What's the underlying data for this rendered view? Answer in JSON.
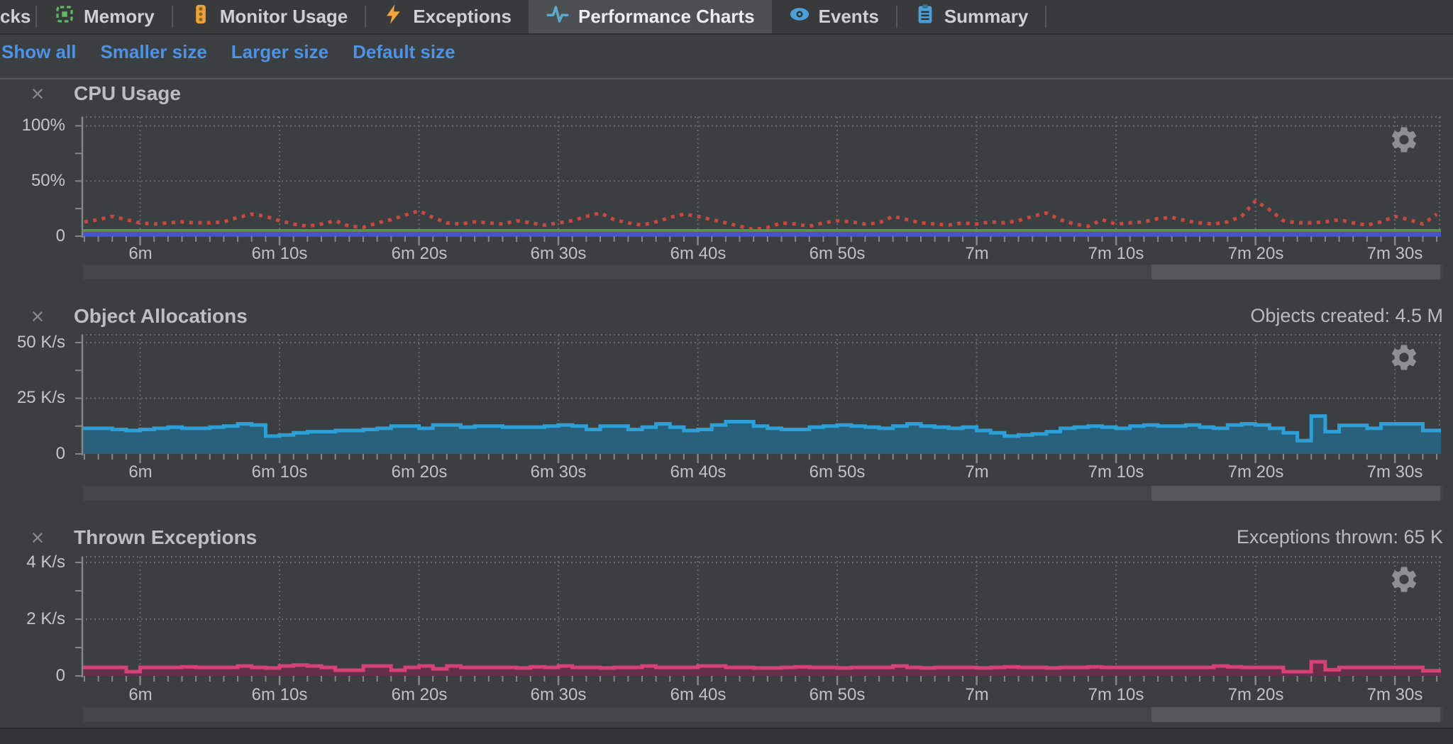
{
  "tabs": {
    "items": [
      {
        "label": "cks",
        "icon": "partial-tab",
        "selected": false
      },
      {
        "label": "Memory",
        "icon": "memory-chip-icon",
        "selected": false
      },
      {
        "label": "Monitor Usage",
        "icon": "traffic-light-icon",
        "selected": false
      },
      {
        "label": "Exceptions",
        "icon": "lightning-icon",
        "selected": false
      },
      {
        "label": "Performance Charts",
        "icon": "pulse-icon",
        "selected": true
      },
      {
        "label": "Events",
        "icon": "eye-icon",
        "selected": false
      },
      {
        "label": "Summary",
        "icon": "clipboard-icon",
        "selected": false
      }
    ]
  },
  "toolbar": {
    "links": [
      "Show all",
      "Smaller size",
      "Larger size",
      "Default size"
    ],
    "link_color": "#4c92e6"
  },
  "ui": {
    "close_glyph": "×",
    "background": "#3c3f41",
    "grid_color": "#66696b",
    "axis_color": "#84878a",
    "scrollbar_track": "#434648",
    "scrollbar_thumb": "#55585b"
  },
  "chart_data": [
    {
      "type": "line",
      "title": "CPU Usage",
      "stat_label": "",
      "x_range": [
        355.8,
        453.3
      ],
      "x_start_seconds": 356,
      "x_ticks": [
        {
          "t": 360,
          "label": "6m"
        },
        {
          "t": 370,
          "label": "6m 10s"
        },
        {
          "t": 380,
          "label": "6m 20s"
        },
        {
          "t": 390,
          "label": "6m 30s"
        },
        {
          "t": 400,
          "label": "6m 40s"
        },
        {
          "t": 410,
          "label": "6m 50s"
        },
        {
          "t": 420,
          "label": "7m"
        },
        {
          "t": 430,
          "label": "7m 10s"
        },
        {
          "t": 440,
          "label": "7m 20s"
        },
        {
          "t": 450,
          "label": "7m 30s"
        }
      ],
      "y_ticks": [
        {
          "v": 100,
          "label": "100%"
        },
        {
          "v": 50,
          "label": "50%"
        },
        {
          "v": 0,
          "label": "0"
        }
      ],
      "y_minor_step": 25,
      "ylim": [
        0,
        108
      ],
      "series": [
        {
          "name": "cpu-load-dotted",
          "style": "dotted-line",
          "color": "#c8483f",
          "width": 5,
          "values": [
            13,
            15,
            18,
            15,
            12,
            11,
            12,
            13,
            12,
            12,
            13,
            17,
            20,
            18,
            14,
            11,
            9,
            11,
            14,
            9,
            8,
            12,
            15,
            19,
            23,
            17,
            12,
            11,
            13,
            12,
            11,
            14,
            12,
            10,
            12,
            14,
            18,
            21,
            15,
            12,
            10,
            13,
            17,
            20,
            18,
            15,
            12,
            9,
            6,
            8,
            12,
            11,
            9,
            12,
            14,
            13,
            11,
            12,
            18,
            15,
            12,
            11,
            10,
            12,
            11,
            13,
            12,
            14,
            18,
            21,
            15,
            11,
            9,
            15,
            11,
            12,
            13,
            16,
            17,
            14,
            12,
            11,
            13,
            18,
            32,
            24,
            14,
            12,
            12,
            13,
            15,
            12,
            10,
            13,
            18,
            15,
            11,
            20
          ]
        },
        {
          "name": "solid-green",
          "style": "line",
          "color": "#3da535",
          "width": 6,
          "constant": 4.5
        },
        {
          "name": "solid-magenta",
          "style": "line",
          "color": "#c4486e",
          "width": 3.5,
          "constant": 3.1
        },
        {
          "name": "solid-blue",
          "style": "line",
          "color": "#4353cb",
          "width": 7,
          "constant": 1.7
        }
      ]
    },
    {
      "type": "step-area",
      "title": "Object Allocations",
      "stat_label": "Objects created: 4.5 M",
      "x_range": [
        355.8,
        453.3
      ],
      "x_start_seconds": 356,
      "x_ticks": [
        {
          "t": 360,
          "label": "6m"
        },
        {
          "t": 370,
          "label": "6m 10s"
        },
        {
          "t": 380,
          "label": "6m 20s"
        },
        {
          "t": 390,
          "label": "6m 30s"
        },
        {
          "t": 400,
          "label": "6m 40s"
        },
        {
          "t": 410,
          "label": "6m 50s"
        },
        {
          "t": 420,
          "label": "7m"
        },
        {
          "t": 430,
          "label": "7m 10s"
        },
        {
          "t": 440,
          "label": "7m 20s"
        },
        {
          "t": 450,
          "label": "7m 30s"
        }
      ],
      "y_ticks": [
        {
          "v": 50,
          "label": "50 K/s"
        },
        {
          "v": 25,
          "label": "25 K/s"
        },
        {
          "v": 0,
          "label": "0"
        }
      ],
      "y_minor_step": 12.5,
      "ylim": [
        0,
        53.5
      ],
      "series": [
        {
          "name": "allocations-per-second",
          "style": "step-area",
          "edge_color": "#2e9fd6",
          "fill_color": "#29617d",
          "edge_width": 5,
          "values": [
            11.5,
            11.5,
            11,
            10.5,
            11,
            11.5,
            12,
            11.5,
            11.5,
            12,
            12.5,
            13.5,
            13,
            8,
            8.5,
            9.5,
            10,
            10,
            10.5,
            10.5,
            11,
            11.5,
            12.5,
            12.5,
            11.5,
            13,
            13,
            12,
            12.5,
            12.5,
            12,
            12,
            12,
            12.5,
            13,
            12.5,
            11,
            12.5,
            12.5,
            11,
            12,
            13.5,
            12,
            10.5,
            11,
            13,
            14.5,
            14.5,
            12.5,
            11.5,
            11,
            11,
            12,
            12.5,
            13,
            12.5,
            12,
            11.5,
            12.5,
            13.5,
            12.5,
            12,
            11.5,
            12,
            10.5,
            9.5,
            8,
            8.5,
            9,
            10,
            11.5,
            12,
            12.5,
            12,
            11.5,
            12.5,
            13,
            12.5,
            12.5,
            13,
            12,
            11.5,
            13,
            13.5,
            13,
            11.5,
            9.5,
            6,
            17,
            10,
            12.8,
            12.8,
            11.5,
            13.5,
            13.5,
            13.5,
            10.5,
            10.5
          ]
        }
      ]
    },
    {
      "type": "step-area",
      "title": "Thrown Exceptions",
      "stat_label": "Exceptions thrown: 65 K",
      "x_range": [
        355.8,
        453.3
      ],
      "x_start_seconds": 356,
      "x_ticks": [
        {
          "t": 360,
          "label": "6m"
        },
        {
          "t": 370,
          "label": "6m 10s"
        },
        {
          "t": 380,
          "label": "6m 20s"
        },
        {
          "t": 390,
          "label": "6m 30s"
        },
        {
          "t": 400,
          "label": "6m 40s"
        },
        {
          "t": 410,
          "label": "6m 50s"
        },
        {
          "t": 420,
          "label": "7m"
        },
        {
          "t": 430,
          "label": "7m 10s"
        },
        {
          "t": 440,
          "label": "7m 20s"
        },
        {
          "t": 450,
          "label": "7m 30s"
        }
      ],
      "y_ticks": [
        {
          "v": 4,
          "label": "4 K/s"
        },
        {
          "v": 2,
          "label": "2 K/s"
        },
        {
          "v": 0,
          "label": "0"
        }
      ],
      "y_minor_step": 1,
      "ylim": [
        0,
        4.2
      ],
      "series": [
        {
          "name": "exceptions-per-second",
          "style": "step-area",
          "edge_color": "#d64277",
          "fill_color": "#643049",
          "edge_width": 5,
          "values": [
            0.3,
            0.3,
            0.3,
            0.15,
            0.3,
            0.3,
            0.3,
            0.32,
            0.3,
            0.3,
            0.3,
            0.35,
            0.3,
            0.28,
            0.35,
            0.38,
            0.35,
            0.3,
            0.2,
            0.2,
            0.35,
            0.35,
            0.2,
            0.3,
            0.35,
            0.25,
            0.35,
            0.3,
            0.3,
            0.3,
            0.3,
            0.28,
            0.32,
            0.3,
            0.35,
            0.3,
            0.3,
            0.28,
            0.3,
            0.3,
            0.35,
            0.3,
            0.3,
            0.3,
            0.35,
            0.35,
            0.3,
            0.3,
            0.28,
            0.28,
            0.3,
            0.32,
            0.3,
            0.3,
            0.28,
            0.3,
            0.3,
            0.3,
            0.35,
            0.3,
            0.28,
            0.3,
            0.3,
            0.3,
            0.28,
            0.3,
            0.32,
            0.3,
            0.3,
            0.28,
            0.3,
            0.3,
            0.32,
            0.3,
            0.3,
            0.3,
            0.3,
            0.3,
            0.3,
            0.3,
            0.3,
            0.35,
            0.32,
            0.3,
            0.3,
            0.3,
            0.15,
            0.15,
            0.5,
            0.22,
            0.3,
            0.3,
            0.3,
            0.3,
            0.3,
            0.3,
            0.18,
            0.18
          ]
        }
      ]
    }
  ]
}
